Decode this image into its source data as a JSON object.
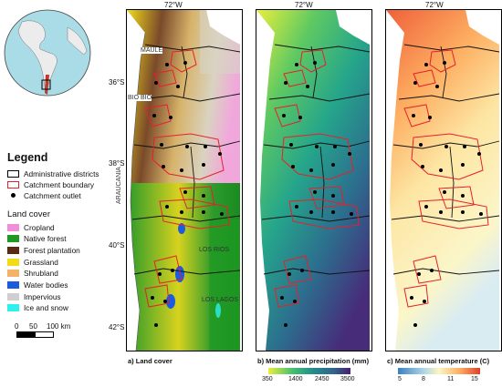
{
  "axes": {
    "lon_label": "72°W",
    "lat_labels": [
      "36°S",
      "38°S",
      "40°S",
      "42°S"
    ]
  },
  "regions": [
    "MAULE",
    "BIO BIO",
    "ARAUCANIA",
    "LOS RIOS",
    "LOS LAGOS"
  ],
  "legend": {
    "title": "Legend",
    "items": [
      {
        "label": "Administrative districts",
        "color": "#000000"
      },
      {
        "label": "Catchment boundary",
        "color": "#e8202a"
      },
      {
        "label": "Catchment outlet",
        "color": "#000000"
      }
    ],
    "land_cover_title": "Land cover",
    "land_cover": [
      {
        "label": "Cropland",
        "color": "#f08fd8"
      },
      {
        "label": "Native forest",
        "color": "#1e9a22"
      },
      {
        "label": "Forest plantation",
        "color": "#5a2a12"
      },
      {
        "label": "Grassland",
        "color": "#f2dc1a"
      },
      {
        "label": "Shrubland",
        "color": "#f5b167"
      },
      {
        "label": "Water bodies",
        "color": "#1a5be0"
      },
      {
        "label": "Impervious",
        "color": "#cfcfcf"
      },
      {
        "label": "Ice and snow",
        "color": "#2ef0f0"
      }
    ]
  },
  "scale_bar": {
    "labels": [
      "0",
      "50",
      "100 km"
    ]
  },
  "panels": [
    {
      "caption": "a) Land cover"
    },
    {
      "caption": "b) Mean annual precipitation (mm)",
      "colorbar": [
        "350",
        "1400",
        "2450",
        "3500"
      ],
      "colors": [
        "#e9ef3b",
        "#43bf71",
        "#238b8d",
        "#33638d",
        "#481f70"
      ]
    },
    {
      "caption": "c) Mean annual temperature (C)",
      "colorbar": [
        "5",
        "8",
        "11",
        "15"
      ],
      "colors": [
        "#3a7fc0",
        "#a9d2e8",
        "#fbf6c3",
        "#fdae61",
        "#e0402a"
      ]
    }
  ]
}
